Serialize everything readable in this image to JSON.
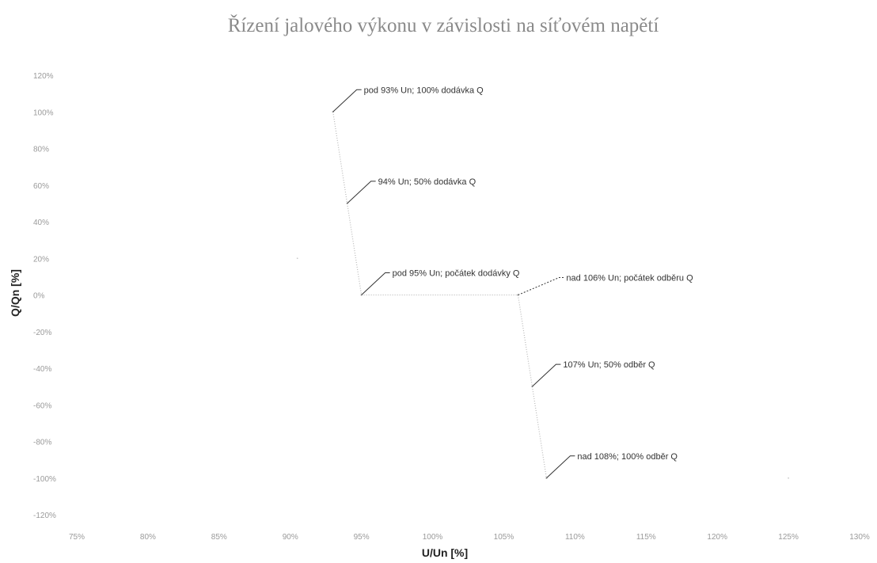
{
  "chart_data": {
    "type": "line",
    "title": "Řízení jalového výkonu v závislosti na síťovém napětí",
    "xlabel": "U/Un [%]",
    "ylabel": "Q/Qn [%]",
    "xlim": [
      75,
      130
    ],
    "ylim": [
      -120,
      120
    ],
    "x_ticks": [
      {
        "value": 75,
        "label": "75%"
      },
      {
        "value": 80,
        "label": "80%"
      },
      {
        "value": 85,
        "label": "85%"
      },
      {
        "value": 90,
        "label": "90%"
      },
      {
        "value": 95,
        "label": "95%"
      },
      {
        "value": 100,
        "label": "100%"
      },
      {
        "value": 105,
        "label": "105%"
      },
      {
        "value": 110,
        "label": "110%"
      },
      {
        "value": 115,
        "label": "115%"
      },
      {
        "value": 120,
        "label": "120%"
      },
      {
        "value": 125,
        "label": "125%"
      },
      {
        "value": 130,
        "label": "130%"
      }
    ],
    "y_ticks": [
      {
        "value": 120,
        "label": "120%"
      },
      {
        "value": 100,
        "label": "100%"
      },
      {
        "value": 80,
        "label": "80%"
      },
      {
        "value": 60,
        "label": "60%"
      },
      {
        "value": 40,
        "label": "40%"
      },
      {
        "value": 20,
        "label": "20%"
      },
      {
        "value": 0,
        "label": "0%"
      },
      {
        "value": -20,
        "label": "-20%"
      },
      {
        "value": -40,
        "label": "-40%"
      },
      {
        "value": -60,
        "label": "-60%"
      },
      {
        "value": -80,
        "label": "-80%"
      },
      {
        "value": -100,
        "label": "-100%"
      },
      {
        "value": -120,
        "label": "-120%"
      }
    ],
    "grid": false,
    "series": [
      {
        "color": "#b8b8b8",
        "x": [
          93,
          94,
          95,
          106,
          107,
          108
        ],
        "y": [
          100,
          50,
          0,
          0,
          -50,
          -100
        ]
      }
    ],
    "stray_points": [
      {
        "x": 90.5,
        "y": 20
      },
      {
        "x": 125,
        "y": -100
      }
    ],
    "annotations": [
      {
        "x": 93,
        "y": 100,
        "text": "pod 93% Un; 100% dodávka Q"
      },
      {
        "x": 94,
        "y": 50,
        "text": "94% Un; 50% dodávka Q"
      },
      {
        "x": 95,
        "y": 0,
        "text": "pod 95% Un; počátek dodávky Q"
      },
      {
        "x": 106,
        "y": 0,
        "text": "nad 106% Un; počátek odběru Q"
      },
      {
        "x": 107,
        "y": -50,
        "text": "107% Un; 50% odběr Q"
      },
      {
        "x": 108,
        "y": -100,
        "text": "nad 108%; 100% odběr Q"
      }
    ]
  }
}
